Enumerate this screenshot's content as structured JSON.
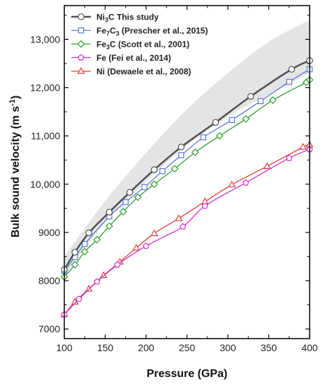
{
  "chart_data": {
    "type": "line",
    "xlabel": "Pressure (GPa)",
    "ylabel": "Bulk sound velocity (m s",
    "ylabel_sup": "-1",
    "ylabel_close": ")",
    "xlim": [
      100,
      400
    ],
    "ylim": [
      6800,
      13700
    ],
    "x_ticks": [
      100,
      150,
      200,
      250,
      300,
      350,
      400
    ],
    "x_tick_labels": [
      "100",
      "150",
      "200",
      "250",
      "300",
      "350",
      "400"
    ],
    "y_ticks": [
      7000,
      8000,
      9000,
      10000,
      11000,
      12000,
      13000
    ],
    "y_tick_labels": [
      "7000",
      "8000",
      "9000",
      "10,000",
      "11,000",
      "12,000",
      "13,000"
    ],
    "legend_position": "top-left",
    "band": {
      "x": [
        100,
        150,
        200,
        250,
        300,
        350,
        400
      ],
      "upper": [
        8500,
        9650,
        10650,
        11550,
        12300,
        12950,
        13400
      ],
      "lower": [
        8100,
        9200,
        10050,
        10800,
        11400,
        11850,
        12300
      ]
    },
    "series": [
      {
        "legend_parts": [
          [
            "Ni",
            "base"
          ],
          [
            "3",
            "sub"
          ],
          [
            "C This study",
            "base"
          ]
        ],
        "color": "#505050",
        "marker": "circle",
        "line_width": 2.5,
        "x": [
          100,
          113,
          130,
          155,
          180,
          210,
          243,
          285,
          328,
          378,
          400
        ],
        "values": [
          8230,
          8590,
          8990,
          9420,
          9830,
          10300,
          10770,
          11280,
          11820,
          12380,
          12560
        ]
      },
      {
        "legend_parts": [
          [
            "Fe",
            "base"
          ],
          [
            "7",
            "sub"
          ],
          [
            "C",
            "base"
          ],
          [
            "3",
            "sub"
          ],
          [
            " (Prescher et al., 2015)",
            "base"
          ]
        ],
        "color": "#5b78d8",
        "marker": "square",
        "line_width": 1.3,
        "x": [
          100,
          113,
          125,
          155,
          175,
          198,
          220,
          243,
          270,
          305,
          340,
          375,
          400
        ],
        "values": [
          8200,
          8490,
          8760,
          9330,
          9630,
          9940,
          10270,
          10600,
          10970,
          11330,
          11720,
          12120,
          12380
        ]
      },
      {
        "legend_parts": [
          [
            "Fe",
            "base"
          ],
          [
            "3",
            "sub"
          ],
          [
            "C (Scott et al., 2001)",
            "base"
          ]
        ],
        "color": "#2ca02c",
        "marker": "diamond",
        "line_width": 1.3,
        "x": [
          100,
          113,
          125,
          140,
          155,
          172,
          190,
          210,
          235,
          260,
          290,
          322,
          355,
          396,
          400
        ],
        "values": [
          8080,
          8330,
          8600,
          8850,
          9130,
          9430,
          9730,
          10000,
          10320,
          10660,
          11000,
          11350,
          11740,
          12110,
          12160
        ]
      },
      {
        "legend_parts": [
          [
            "Fe (Fei et al., 2014)",
            "base"
          ]
        ],
        "color": "#cc33cc",
        "marker": "pentagon",
        "line_width": 1.3,
        "x": [
          100,
          118,
          140,
          165,
          200,
          245,
          272,
          322,
          375,
          400
        ],
        "values": [
          7300,
          7620,
          7980,
          8330,
          8720,
          9120,
          9550,
          10030,
          10540,
          10720
        ]
      },
      {
        "legend_parts": [
          [
            "Ni (Dewaele et al., 2008)",
            "base"
          ]
        ],
        "color": "#e03c3c",
        "marker": "triangle",
        "line_width": 1.3,
        "x": [
          100,
          113,
          130,
          148,
          168,
          188,
          210,
          240,
          272,
          305,
          348,
          392,
          400
        ],
        "values": [
          7300,
          7560,
          7830,
          8110,
          8390,
          8680,
          8980,
          9290,
          9640,
          9990,
          10370,
          10770,
          10820
        ]
      }
    ]
  }
}
